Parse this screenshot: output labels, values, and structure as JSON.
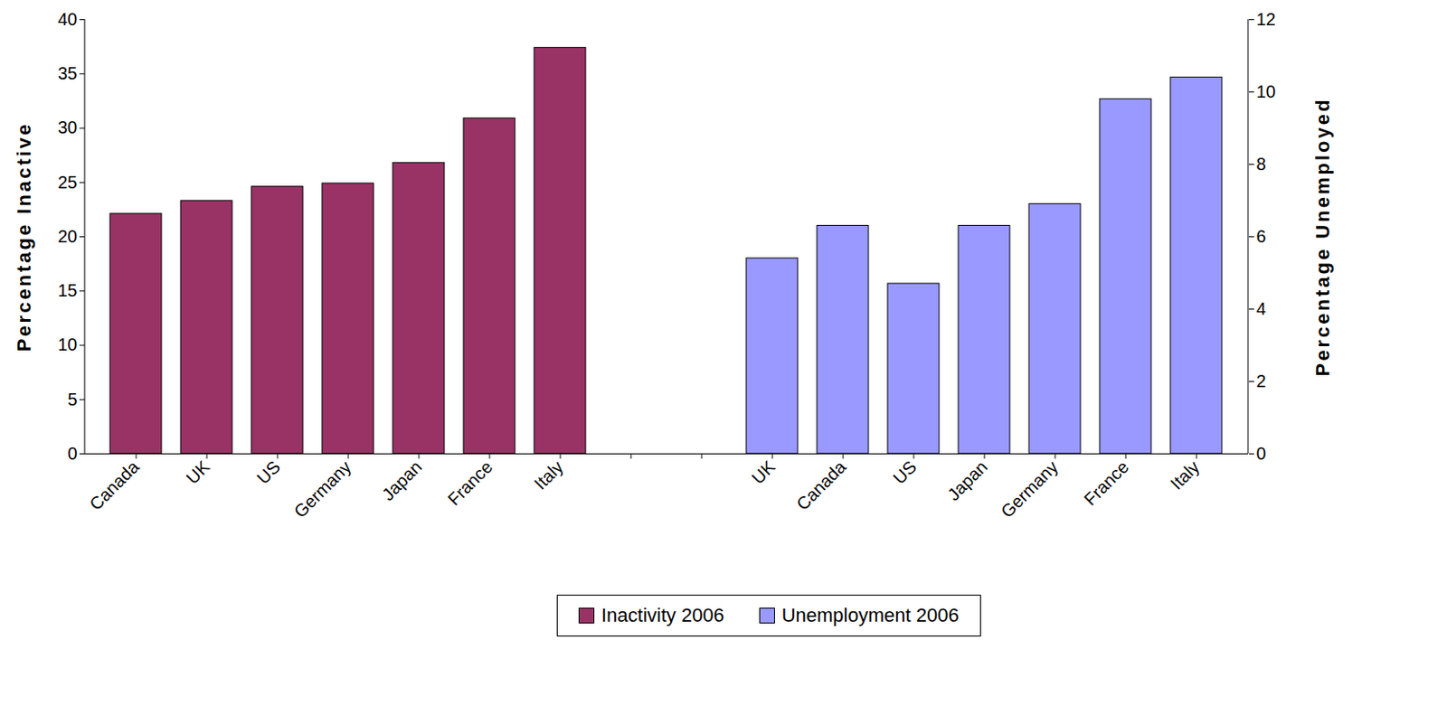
{
  "chart_data": {
    "type": "bar",
    "categories": [
      "Canada",
      "UK",
      "US",
      "Germany",
      "Japan",
      "France",
      "Italy",
      null,
      null,
      "UK",
      "Canada",
      "US",
      "Japan",
      "Germany",
      "France",
      "Italy"
    ],
    "series": [
      {
        "name": "Inactivity 2006",
        "color": "#993366",
        "values": [
          22.1,
          23.3,
          24.6,
          24.9,
          26.8,
          30.9,
          37.4,
          null,
          null,
          null,
          null,
          null,
          null,
          null,
          null,
          null
        ]
      },
      {
        "name": "Unemployment 2006",
        "color": "#9999FF",
        "axis": "y2",
        "values": [
          null,
          null,
          null,
          null,
          null,
          null,
          null,
          null,
          null,
          5.4,
          6.3,
          4.7,
          6.3,
          6.9,
          9.8,
          10.4
        ]
      }
    ],
    "ylabel": "Percentage Inactive",
    "y2label": "Percentage Unemployed",
    "ylim": [
      0,
      40
    ],
    "yticks": [
      0,
      5,
      10,
      15,
      20,
      25,
      30,
      35,
      40
    ],
    "y2lim": [
      0,
      12
    ],
    "y2ticks": [
      0,
      2,
      4,
      6,
      8,
      10,
      12
    ],
    "grid": false,
    "legend": "bottom"
  }
}
